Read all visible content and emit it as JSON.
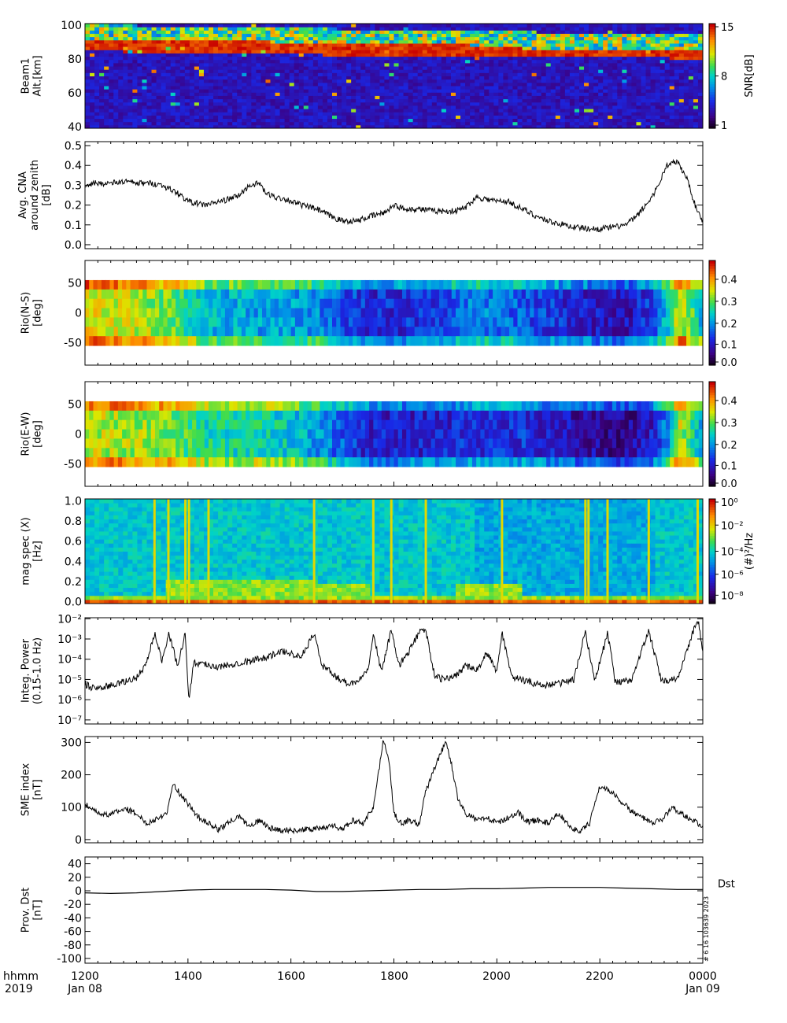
{
  "figure": {
    "x_time_labels": [
      "1200",
      "1400",
      "1600",
      "1800",
      "2000",
      "2200",
      "0000"
    ],
    "x_date_labels": [
      "Jan 08",
      "Jan 09"
    ],
    "corner_label_top": "hhmm",
    "corner_label_bottom": "2019",
    "side_stamp": "# 6 16 103639 2023"
  },
  "chart_data": [
    {
      "type": "heatmap",
      "name": "beam1",
      "ylabel_lines": [
        "Beam1",
        "Alt.[km]"
      ],
      "yticks": [
        40,
        60,
        80,
        100
      ],
      "ylim": [
        39,
        101
      ],
      "colorbar": {
        "label": "SNR[dB]",
        "ticks": [
          "15",
          "8",
          "1"
        ],
        "range": [
          1,
          15
        ],
        "colormap": "rainbow"
      },
      "feature": "bright red echo band near 85-90 km throughout the interval, fading after 2000"
    },
    {
      "type": "line",
      "name": "cna",
      "ylabel_lines": [
        "Avg. CNA",
        "around zenith",
        "[dB]"
      ],
      "yticks": [
        0.0,
        0.1,
        0.2,
        0.3,
        0.4,
        0.5
      ],
      "ylim": [
        -0.02,
        0.52
      ],
      "x_hours": [
        12.0,
        12.2,
        12.5,
        12.8,
        13.0,
        13.3,
        13.5,
        13.8,
        14.0,
        14.3,
        14.5,
        14.8,
        15.0,
        15.2,
        15.4,
        15.5,
        15.7,
        15.9,
        16.0,
        16.2,
        16.5,
        16.8,
        17.0,
        17.3,
        17.5,
        17.8,
        18.0,
        18.2,
        18.5,
        18.8,
        19.0,
        19.2,
        19.4,
        19.6,
        19.8,
        20.0,
        20.2,
        20.5,
        20.8,
        21.0,
        21.3,
        21.5,
        21.8,
        22.0,
        22.3,
        22.5,
        22.7,
        22.9,
        23.1,
        23.3,
        23.5,
        23.7,
        23.85,
        24.0
      ],
      "values": [
        0.3,
        0.31,
        0.31,
        0.32,
        0.31,
        0.31,
        0.3,
        0.26,
        0.22,
        0.2,
        0.21,
        0.23,
        0.25,
        0.3,
        0.31,
        0.26,
        0.24,
        0.23,
        0.22,
        0.2,
        0.18,
        0.14,
        0.12,
        0.12,
        0.14,
        0.16,
        0.2,
        0.18,
        0.18,
        0.17,
        0.17,
        0.17,
        0.19,
        0.24,
        0.23,
        0.22,
        0.22,
        0.18,
        0.14,
        0.12,
        0.1,
        0.09,
        0.08,
        0.08,
        0.09,
        0.1,
        0.14,
        0.2,
        0.28,
        0.4,
        0.42,
        0.33,
        0.2,
        0.12
      ]
    },
    {
      "type": "heatmap",
      "name": "rio-ns",
      "ylabel_lines": [
        "Rio(N-S)",
        "[deg]"
      ],
      "yticks": [
        -50,
        0,
        50
      ],
      "ylim": [
        -88,
        88
      ],
      "colorbar": {
        "ticks": [
          "0.4",
          "0.3",
          "0.2",
          "0.1",
          "0.0"
        ],
        "range": [
          0,
          0.48
        ],
        "colormap": "rainbow"
      },
      "x_hours": [
        12.0,
        13.0,
        13.7,
        14.3,
        15.5,
        16.4,
        17.5,
        18.5,
        19.6,
        20.5,
        21.5,
        22.5,
        23.0,
        23.3,
        23.5,
        23.7,
        24.0
      ],
      "row_offsets_deg": [
        -60,
        -40,
        -20,
        0,
        20,
        40,
        60
      ],
      "profile_values": [
        0.36,
        0.33,
        0.29,
        0.22,
        0.2,
        0.19,
        0.11,
        0.12,
        0.18,
        0.15,
        0.1,
        0.08,
        0.14,
        0.24,
        0.36,
        0.3,
        0.2
      ]
    },
    {
      "type": "heatmap",
      "name": "rio-ew",
      "ylabel_lines": [
        "Rio(E-W)",
        "[deg]"
      ],
      "yticks": [
        -50,
        0,
        50
      ],
      "ylim": [
        -88,
        88
      ],
      "colorbar": {
        "ticks": [
          "0.4",
          "0.3",
          "0.2",
          "0.1",
          "0.0"
        ],
        "range": [
          0,
          0.48
        ],
        "colormap": "rainbow"
      },
      "x_hours": [
        12.0,
        13.0,
        13.7,
        14.3,
        15.5,
        16.4,
        17.5,
        18.5,
        19.6,
        20.5,
        21.5,
        22.5,
        23.0,
        23.3,
        23.5,
        23.7,
        24.0
      ],
      "row_offsets_deg": [
        -60,
        -40,
        -20,
        0,
        20,
        40,
        60
      ],
      "profile_values": [
        0.34,
        0.32,
        0.3,
        0.25,
        0.25,
        0.2,
        0.1,
        0.1,
        0.12,
        0.12,
        0.08,
        0.06,
        0.1,
        0.2,
        0.34,
        0.28,
        0.18
      ]
    },
    {
      "type": "heatmap",
      "name": "mag-spec",
      "ylabel_lines": [
        "mag spec (X)",
        "[Hz]"
      ],
      "yticks": [
        0.0,
        0.2,
        0.4,
        0.6,
        0.8,
        1.0
      ],
      "ylim": [
        -0.02,
        1.02
      ],
      "colorbar": {
        "label": "(#)²/Hz",
        "ticks": [
          "10⁰",
          "10⁻²",
          "10⁻⁴",
          "10⁻⁶",
          "10⁻⁸"
        ],
        "range_log10": [
          -9,
          0
        ],
        "colormap": "rainbow"
      },
      "burst_hours": [
        13.35,
        13.62,
        13.95,
        14.02,
        14.4,
        16.45,
        17.6,
        17.95,
        18.62,
        20.1,
        21.72,
        21.78,
        22.15,
        22.95,
        23.9
      ],
      "low_band_top_hz": [
        {
          "from": 13.5,
          "to": 16.5,
          "top": 0.24
        },
        {
          "from": 16.5,
          "to": 17.5,
          "top": 0.18
        },
        {
          "from": 19.2,
          "to": 20.4,
          "top": 0.2
        }
      ]
    },
    {
      "type": "line",
      "name": "integ-power",
      "ylabel_lines": [
        "Integ. Power",
        "(0.15-1.0 Hz)"
      ],
      "yticks": [
        "10⁻⁷",
        "10⁻⁶",
        "10⁻⁵",
        "10⁻⁴",
        "10⁻³",
        "10⁻²"
      ],
      "ylim_log10": [
        -7.2,
        -1.95
      ],
      "x_hours": [
        12.0,
        12.1,
        12.3,
        12.5,
        12.8,
        13.0,
        13.2,
        13.35,
        13.5,
        13.62,
        13.8,
        13.95,
        14.02,
        14.1,
        14.3,
        14.6,
        14.9,
        15.2,
        15.5,
        15.9,
        16.2,
        16.45,
        16.6,
        16.9,
        17.1,
        17.3,
        17.5,
        17.6,
        17.75,
        17.95,
        18.1,
        18.3,
        18.5,
        18.62,
        18.8,
        19.0,
        19.2,
        19.4,
        19.6,
        19.8,
        20.0,
        20.1,
        20.3,
        20.6,
        20.9,
        21.2,
        21.5,
        21.72,
        21.9,
        22.15,
        22.3,
        22.6,
        22.95,
        23.2,
        23.5,
        23.9,
        24.0
      ],
      "values_log10": [
        -5.2,
        -5.4,
        -5.4,
        -5.3,
        -5.1,
        -4.9,
        -4.2,
        -2.7,
        -4.1,
        -2.7,
        -4.3,
        -2.7,
        -6.2,
        -4.2,
        -4.2,
        -4.4,
        -4.2,
        -4.1,
        -3.9,
        -3.6,
        -3.9,
        -2.7,
        -4.3,
        -4.9,
        -5.2,
        -5.1,
        -4.4,
        -2.7,
        -4.6,
        -2.6,
        -4.3,
        -3.6,
        -2.6,
        -2.6,
        -4.9,
        -5.0,
        -4.8,
        -4.3,
        -4.6,
        -3.7,
        -4.6,
        -2.7,
        -4.9,
        -5.1,
        -5.3,
        -5.2,
        -5.0,
        -2.6,
        -5.1,
        -2.7,
        -5.1,
        -5.1,
        -2.6,
        -5.1,
        -5.0,
        -2.0,
        -3.5
      ]
    },
    {
      "type": "line",
      "name": "sme",
      "ylabel_lines": [
        "SME index",
        "[nT]"
      ],
      "yticks": [
        0,
        100,
        200,
        300
      ],
      "ylim": [
        -10,
        318
      ],
      "x_hours": [
        12.0,
        12.2,
        12.4,
        12.6,
        12.8,
        13.0,
        13.2,
        13.4,
        13.6,
        13.7,
        13.85,
        14.0,
        14.2,
        14.4,
        14.6,
        14.8,
        15.0,
        15.2,
        15.4,
        15.6,
        15.8,
        16.0,
        16.2,
        16.4,
        16.6,
        16.8,
        17.0,
        17.2,
        17.4,
        17.6,
        17.8,
        17.9,
        18.0,
        18.15,
        18.3,
        18.5,
        18.6,
        18.8,
        19.0,
        19.1,
        19.25,
        19.4,
        19.6,
        19.8,
        20.0,
        20.2,
        20.4,
        20.6,
        20.8,
        21.0,
        21.2,
        21.4,
        21.6,
        21.8,
        22.0,
        22.2,
        22.4,
        22.6,
        22.8,
        23.0,
        23.2,
        23.4,
        23.6,
        23.8,
        24.0
      ],
      "values": [
        110,
        85,
        75,
        85,
        95,
        80,
        50,
        65,
        85,
        175,
        140,
        110,
        70,
        50,
        30,
        55,
        70,
        40,
        60,
        35,
        30,
        28,
        30,
        32,
        35,
        45,
        30,
        60,
        50,
        100,
        310,
        250,
        80,
        50,
        60,
        45,
        140,
        225,
        300,
        250,
        120,
        80,
        60,
        70,
        50,
        65,
        85,
        55,
        60,
        50,
        80,
        45,
        20,
        50,
        165,
        150,
        120,
        90,
        70,
        50,
        60,
        100,
        80,
        60,
        40
      ]
    },
    {
      "type": "line",
      "name": "dst",
      "ylabel_lines": [
        "Prov. Dst",
        "[nT]"
      ],
      "yticks": [
        -100,
        -80,
        -60,
        -40,
        -20,
        0,
        20,
        40
      ],
      "ylim": [
        -107,
        50
      ],
      "series_label": "Dst",
      "x_hours": [
        12.0,
        12.5,
        13.0,
        13.5,
        14.0,
        14.5,
        15.0,
        15.5,
        16.0,
        16.5,
        17.0,
        17.5,
        18.0,
        18.5,
        19.0,
        19.5,
        20.0,
        20.5,
        21.0,
        21.5,
        22.0,
        22.5,
        23.0,
        23.5,
        24.0
      ],
      "values": [
        -3,
        -4,
        -3,
        -1,
        1,
        2,
        2,
        2,
        1,
        -1,
        -1,
        0,
        1,
        2,
        2,
        3,
        3,
        4,
        5,
        5,
        5,
        4,
        3,
        2,
        2
      ]
    }
  ]
}
